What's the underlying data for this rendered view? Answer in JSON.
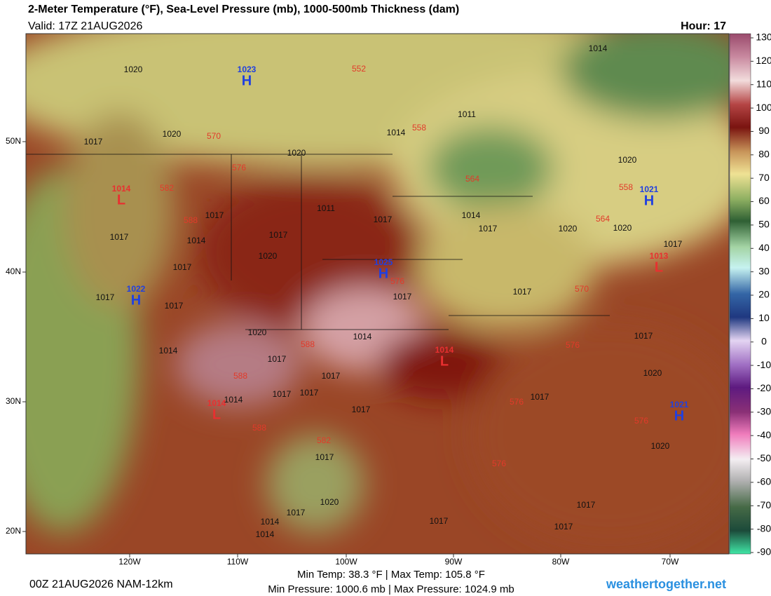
{
  "header": {
    "title": "2-Meter Temperature (°F), Sea-Level Pressure (mb), 1000-500mb Thickness (dam)",
    "valid": "Valid: 17Z 21AUG2026",
    "hour": "Hour: 17"
  },
  "colorbar": {
    "ticks": [
      130,
      120,
      110,
      100,
      90,
      80,
      70,
      60,
      50,
      40,
      30,
      20,
      10,
      0,
      -10,
      -20,
      -30,
      -40,
      -50,
      -60,
      -70,
      -80,
      -90
    ]
  },
  "axes": {
    "lon_labels": [
      "120W",
      "110W",
      "100W",
      "90W",
      "80W",
      "70W"
    ],
    "lat_labels": [
      "50N",
      "40N",
      "30N",
      "20N"
    ]
  },
  "centers": [
    {
      "type": "H",
      "value": "1023"
    },
    {
      "type": "L",
      "value": "1014"
    },
    {
      "type": "H",
      "value": "1022"
    },
    {
      "type": "H",
      "value": "1025"
    },
    {
      "type": "L",
      "value": "1014"
    },
    {
      "type": "H",
      "value": "1021"
    },
    {
      "type": "L",
      "value": "1013"
    },
    {
      "type": "H",
      "value": "1021"
    },
    {
      "type": "L",
      "value": "1014"
    }
  ],
  "isobar_labels": [
    "1020",
    "1014",
    "1011",
    "1014",
    "1020",
    "1017",
    "1020",
    "1017",
    "1017",
    "1014",
    "1017",
    "1011",
    "1017",
    "1014",
    "1017",
    "1020",
    "1020",
    "1017",
    "1020",
    "1017",
    "1017",
    "1017",
    "1017",
    "1017",
    "1020",
    "1020",
    "1014",
    "1014",
    "1017",
    "1017",
    "1017",
    "1017",
    "1017",
    "1017",
    "1017",
    "1020",
    "1020",
    "1017",
    "1020",
    "1017",
    "1014",
    "1014",
    "1017",
    "1017",
    "1017",
    "1014"
  ],
  "thickness_labels": [
    "552",
    "558",
    "570",
    "576",
    "582",
    "564",
    "558",
    "564",
    "588",
    "576",
    "570",
    "576",
    "588",
    "588",
    "588",
    "582",
    "576",
    "576",
    "576"
  ],
  "footer": {
    "run": "00Z 21AUG2026 NAM-12km",
    "temp_stats": "Min Temp:  38.3 °F | Max Temp: 105.8 °F",
    "pressure_stats": "Min Pressure: 1000.6 mb | Max Pressure: 1024.9 mb",
    "site": "weathertogether.net"
  }
}
